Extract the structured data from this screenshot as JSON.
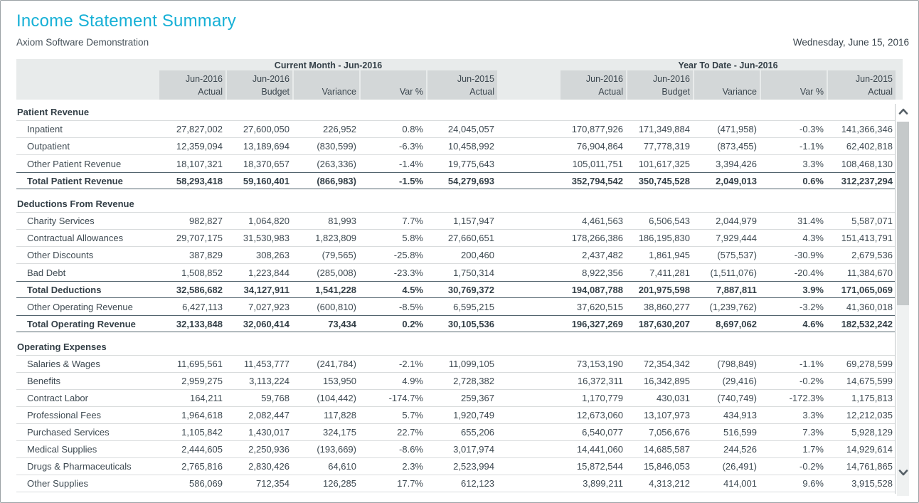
{
  "page": {
    "title": "Income Statement Summary",
    "subtitle": "Axiom Software Demonstration",
    "date": "Wednesday, June 15, 2016"
  },
  "colors": {
    "accent": "#16b0d6",
    "header_band": "#e8ebeb",
    "header_cell": "#d3d7d8",
    "body_text": "#3e4a52",
    "total_border": "#53646e",
    "row_border": "#d9dcdd"
  },
  "icons": {
    "scroll_up": "chevron-up-icon",
    "scroll_down": "chevron-down-icon"
  },
  "table": {
    "groups": [
      {
        "label": "Current Month - Jun-2016"
      },
      {
        "label": "Year To Date - Jun-2016"
      }
    ],
    "columns": [
      {
        "line1": "Jun-2016",
        "line2": "Actual"
      },
      {
        "line1": "Jun-2016",
        "line2": "Budget"
      },
      {
        "line1": "",
        "line2": "Variance"
      },
      {
        "line1": "",
        "line2": "Var %"
      },
      {
        "line1": "Jun-2015",
        "line2": "Actual"
      },
      {
        "line1": "Jun-2016",
        "line2": "Actual"
      },
      {
        "line1": "Jun-2016",
        "line2": "Budget"
      },
      {
        "line1": "",
        "line2": "Variance"
      },
      {
        "line1": "",
        "line2": "Var %"
      },
      {
        "line1": "Jun-2015",
        "line2": "Actual"
      }
    ],
    "sections": [
      {
        "header": "Patient Revenue",
        "rows": [
          {
            "label": "Inpatient",
            "type": "item",
            "values": [
              "27,827,002",
              "27,600,050",
              "226,952",
              "0.8%",
              "24,045,057",
              "170,877,926",
              "171,349,884",
              "(471,958)",
              "-0.3%",
              "141,366,346"
            ]
          },
          {
            "label": "Outpatient",
            "type": "item",
            "values": [
              "12,359,094",
              "13,189,694",
              "(830,599)",
              "-6.3%",
              "10,458,992",
              "76,904,864",
              "77,778,319",
              "(873,455)",
              "-1.1%",
              "62,402,818"
            ]
          },
          {
            "label": "Other Patient Revenue",
            "type": "item",
            "values": [
              "18,107,321",
              "18,370,657",
              "(263,336)",
              "-1.4%",
              "19,775,643",
              "105,011,751",
              "101,617,325",
              "3,394,426",
              "3.3%",
              "108,468,130"
            ]
          },
          {
            "label": "Total Patient Revenue",
            "type": "total",
            "values": [
              "58,293,418",
              "59,160,401",
              "(866,983)",
              "-1.5%",
              "54,279,693",
              "352,794,542",
              "350,745,528",
              "2,049,013",
              "0.6%",
              "312,237,294"
            ]
          }
        ]
      },
      {
        "header": "Deductions From Revenue",
        "rows": [
          {
            "label": "Charity Services",
            "type": "item",
            "values": [
              "982,827",
              "1,064,820",
              "81,993",
              "7.7%",
              "1,157,947",
              "4,461,563",
              "6,506,543",
              "2,044,979",
              "31.4%",
              "5,587,071"
            ]
          },
          {
            "label": "Contractual Allowances",
            "type": "item",
            "values": [
              "29,707,175",
              "31,530,983",
              "1,823,809",
              "5.8%",
              "27,660,651",
              "178,266,386",
              "186,195,830",
              "7,929,444",
              "4.3%",
              "151,413,791"
            ]
          },
          {
            "label": "Other Discounts",
            "type": "item",
            "values": [
              "387,829",
              "308,263",
              "(79,565)",
              "-25.8%",
              "200,460",
              "2,437,482",
              "1,861,945",
              "(575,537)",
              "-30.9%",
              "2,679,536"
            ]
          },
          {
            "label": "Bad Debt",
            "type": "item",
            "values": [
              "1,508,852",
              "1,223,844",
              "(285,008)",
              "-23.3%",
              "1,750,314",
              "8,922,356",
              "7,411,281",
              "(1,511,076)",
              "-20.4%",
              "11,384,670"
            ]
          },
          {
            "label": "Total Deductions",
            "type": "total",
            "values": [
              "32,586,682",
              "34,127,911",
              "1,541,228",
              "4.5%",
              "30,769,372",
              "194,087,788",
              "201,975,598",
              "7,887,811",
              "3.9%",
              "171,065,069"
            ]
          },
          {
            "label": "Other Operating Revenue",
            "type": "item",
            "values": [
              "6,427,113",
              "7,027,923",
              "(600,810)",
              "-8.5%",
              "6,595,215",
              "37,620,515",
              "38,860,277",
              "(1,239,762)",
              "-3.2%",
              "41,360,018"
            ]
          },
          {
            "label": "Total Operating Revenue",
            "type": "total",
            "values": [
              "32,133,848",
              "32,060,414",
              "73,434",
              "0.2%",
              "30,105,536",
              "196,327,269",
              "187,630,207",
              "8,697,062",
              "4.6%",
              "182,532,242"
            ]
          }
        ]
      },
      {
        "header": "Operating Expenses",
        "rows": [
          {
            "label": "Salaries & Wages",
            "type": "item",
            "values": [
              "11,695,561",
              "11,453,777",
              "(241,784)",
              "-2.1%",
              "11,099,105",
              "73,153,190",
              "72,354,342",
              "(798,849)",
              "-1.1%",
              "69,278,599"
            ]
          },
          {
            "label": "Benefits",
            "type": "item",
            "values": [
              "2,959,275",
              "3,113,224",
              "153,950",
              "4.9%",
              "2,728,382",
              "16,372,311",
              "16,342,895",
              "(29,416)",
              "-0.2%",
              "14,675,599"
            ]
          },
          {
            "label": "Contract Labor",
            "type": "item",
            "values": [
              "164,211",
              "59,768",
              "(104,442)",
              "-174.7%",
              "259,367",
              "1,170,779",
              "430,031",
              "(740,749)",
              "-172.3%",
              "1,175,813"
            ]
          },
          {
            "label": "Professional Fees",
            "type": "item",
            "values": [
              "1,964,618",
              "2,082,447",
              "117,828",
              "5.7%",
              "1,920,749",
              "12,673,060",
              "13,107,973",
              "434,913",
              "3.3%",
              "12,212,035"
            ]
          },
          {
            "label": "Purchased Services",
            "type": "item",
            "values": [
              "1,105,842",
              "1,430,017",
              "324,175",
              "22.7%",
              "655,206",
              "6,540,077",
              "7,056,676",
              "516,599",
              "7.3%",
              "5,928,129"
            ]
          },
          {
            "label": "Medical Supplies",
            "type": "item",
            "values": [
              "2,444,605",
              "2,250,936",
              "(193,669)",
              "-8.6%",
              "3,017,974",
              "14,441,060",
              "14,685,587",
              "244,526",
              "1.7%",
              "14,929,614"
            ]
          },
          {
            "label": "Drugs & Pharmaceuticals",
            "type": "item",
            "values": [
              "2,765,816",
              "2,830,426",
              "64,610",
              "2.3%",
              "2,523,994",
              "15,872,544",
              "15,846,053",
              "(26,491)",
              "-0.2%",
              "14,761,865"
            ]
          },
          {
            "label": "Other Supplies",
            "type": "item",
            "values": [
              "586,069",
              "712,354",
              "126,285",
              "17.7%",
              "612,123",
              "3,899,211",
              "4,313,212",
              "414,001",
              "9.6%",
              "3,915,528"
            ]
          }
        ]
      }
    ]
  }
}
